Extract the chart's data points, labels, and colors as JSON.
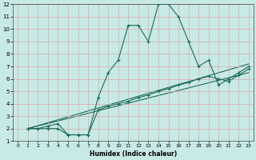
{
  "xlabel": "Humidex (Indice chaleur)",
  "ylabel": "",
  "xlim": [
    -0.5,
    23.5
  ],
  "ylim": [
    1,
    12
  ],
  "xticks": [
    0,
    1,
    2,
    3,
    4,
    5,
    6,
    7,
    8,
    9,
    10,
    11,
    12,
    13,
    14,
    15,
    16,
    17,
    18,
    19,
    20,
    21,
    22,
    23
  ],
  "yticks": [
    1,
    2,
    3,
    4,
    5,
    6,
    7,
    8,
    9,
    10,
    11,
    12
  ],
  "bg_color": "#c8eae6",
  "grid_color": "#d8a8a8",
  "line_color": "#1a6b5a",
  "line1_x": [
    1,
    2,
    3,
    4,
    5,
    6,
    7,
    8,
    9,
    10,
    11,
    12,
    13,
    14,
    15,
    16,
    17,
    18,
    19,
    20,
    21,
    22,
    23
  ],
  "line1_y": [
    2,
    2,
    2,
    2,
    1.5,
    1.5,
    1.5,
    4.5,
    6.5,
    7.5,
    10.3,
    10.3,
    9.0,
    12,
    12,
    11,
    9.0,
    7.0,
    7.5,
    5.5,
    6.0,
    6.5,
    7.0
  ],
  "line2_x": [
    1,
    2,
    3,
    4,
    5,
    6,
    7,
    8,
    9,
    10,
    11,
    12,
    13,
    14,
    15,
    16,
    17,
    18,
    19,
    20,
    21,
    22,
    23
  ],
  "line2_y": [
    2,
    2,
    2.2,
    2.4,
    1.5,
    1.5,
    1.5,
    3.5,
    3.8,
    4.0,
    4.2,
    4.5,
    4.7,
    5.0,
    5.2,
    5.5,
    5.7,
    6.0,
    6.2,
    6.0,
    5.8,
    6.3,
    6.8
  ],
  "line3_x": [
    1,
    23
  ],
  "line3_y": [
    2,
    6.5
  ],
  "line4_x": [
    1,
    23
  ],
  "line4_y": [
    2,
    7.2
  ]
}
